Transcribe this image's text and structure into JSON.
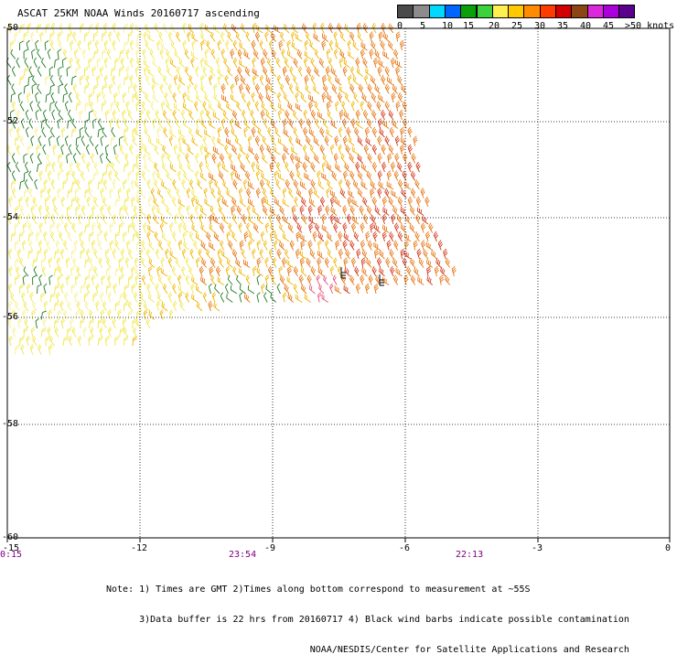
{
  "title": "ASCAT 25KM NOAA Winds 20160717 ascending",
  "legend": {
    "colors": [
      "#4a4a4a",
      "#8c8c8c",
      "#00d8ff",
      "#0064ff",
      "#0aa00a",
      "#3cd23c",
      "#fff050",
      "#ffc800",
      "#ff8c00",
      "#ff3c00",
      "#d20000",
      "#8c4614",
      "#dc28dc",
      "#aa00dc",
      "#5a008c"
    ],
    "labels": [
      "0",
      "5",
      "10",
      "15",
      "20",
      "25",
      "30",
      "35",
      "40",
      "45",
      ">50 knots"
    ]
  },
  "axes": {
    "x_ticks": [
      "-15",
      "-12",
      "-9",
      "-6",
      "-3",
      "0"
    ],
    "y_ticks": [
      "-50",
      "-52",
      "-54",
      "-56",
      "-58",
      "-60"
    ]
  },
  "times": [
    "0:15",
    "23:54",
    "22:13"
  ],
  "notes": [
    "Note: 1) Times are GMT 2)Times along bottom correspond to measurement at ~55S",
    "      3)Data buffer is 22 hrs from 20160717 4) Black wind barbs indicate possible contamination",
    "                                     NOAA/NESDIS/Center for Satellite Applications and Research"
  ],
  "barb_colors": {
    "green": "#1e7a1e",
    "yellow": "#f2e64a",
    "light_yellow": "#f7f08c",
    "gold": "#f0b400",
    "orange": "#e67814",
    "red": "#d23c1e",
    "pink": "#e6507a",
    "black": "#000000"
  }
}
